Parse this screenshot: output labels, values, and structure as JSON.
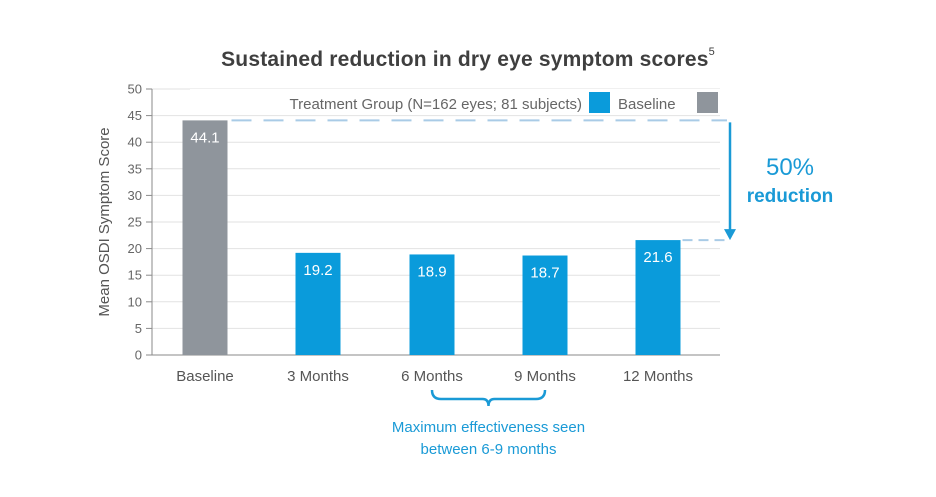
{
  "title": {
    "text": "Sustained reduction in dry eye symptom scores",
    "superscript": "5"
  },
  "chart_data": {
    "type": "bar",
    "title": "Sustained reduction in dry eye symptom scores",
    "xlabel": "",
    "ylabel": "Mean OSDI Symptom Score",
    "ylim": [
      0,
      50
    ],
    "yticks": [
      0,
      5,
      10,
      15,
      20,
      25,
      30,
      35,
      40,
      45,
      50
    ],
    "grid": true,
    "categories": [
      "Baseline",
      "3 Months",
      "6 Months",
      "9 Months",
      "12 Months"
    ],
    "values": [
      44.1,
      19.2,
      18.9,
      18.7,
      21.6
    ],
    "data_labels": [
      "44.1",
      "19.2",
      "18.9",
      "18.7",
      "21.6"
    ],
    "bar_groups": [
      "baseline",
      "treatment",
      "treatment",
      "treatment",
      "treatment"
    ],
    "legend": {
      "placement": "top",
      "items": [
        {
          "label": "Treatment Group (N=162 eyes; 81 subjects)",
          "color": "#0a9bdb",
          "key": "treatment"
        },
        {
          "label": "Baseline",
          "color": "#8f959c",
          "key": "baseline"
        }
      ]
    },
    "annotations": {
      "reduction_pct": "50%",
      "reduction_word": "reduction",
      "bracket_text_line1": "Maximum effectiveness seen",
      "bracket_text_line2": "between 6-9 months",
      "bracket_categories": [
        "6 Months",
        "9 Months"
      ]
    }
  },
  "colors": {
    "treatment": "#0a9bdb",
    "baseline": "#8f959c",
    "accent_text": "#1a9ad6",
    "grid": "#e2e2e2",
    "axis": "#8a8a8a",
    "text": "#555555",
    "dashed": "#a9cbe6"
  }
}
